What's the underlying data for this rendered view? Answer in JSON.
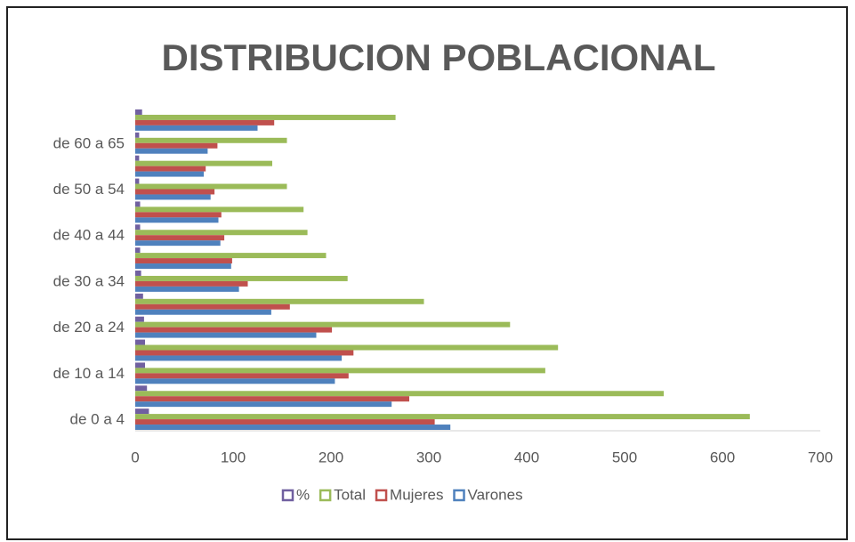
{
  "chart_data": {
    "type": "barh",
    "title": "DISTRIBUCION POBLACIONAL",
    "categories": [
      "de 0 a 4",
      null,
      "de 10 a 14",
      null,
      "de 20 a 24",
      null,
      "de 30 a 34",
      null,
      "de 40 a 44",
      null,
      "de 50 a 54",
      null,
      "de 60 a 65",
      null
    ],
    "series": [
      {
        "name": "%",
        "color": "#7060a0",
        "values": [
          14,
          12,
          10,
          10,
          9,
          8,
          6,
          5,
          5,
          5,
          4,
          4,
          4,
          7
        ]
      },
      {
        "name": "Total",
        "color": "#9bbb59",
        "values": [
          628,
          540,
          419,
          432,
          383,
          295,
          217,
          195,
          176,
          172,
          155,
          140,
          155,
          266
        ]
      },
      {
        "name": "Mujeres",
        "color": "#c0504d",
        "values": [
          306,
          280,
          218,
          223,
          201,
          158,
          115,
          99,
          91,
          88,
          81,
          72,
          84,
          142
        ]
      },
      {
        "name": "Varones",
        "color": "#4f81bd",
        "values": [
          322,
          262,
          204,
          211,
          185,
          139,
          106,
          98,
          87,
          85,
          77,
          70,
          74,
          125
        ]
      }
    ],
    "xlim": [
      0,
      700
    ],
    "xticks": [
      0,
      100,
      200,
      300,
      400,
      500,
      600,
      700
    ],
    "grid": false,
    "legend": "bottom"
  }
}
